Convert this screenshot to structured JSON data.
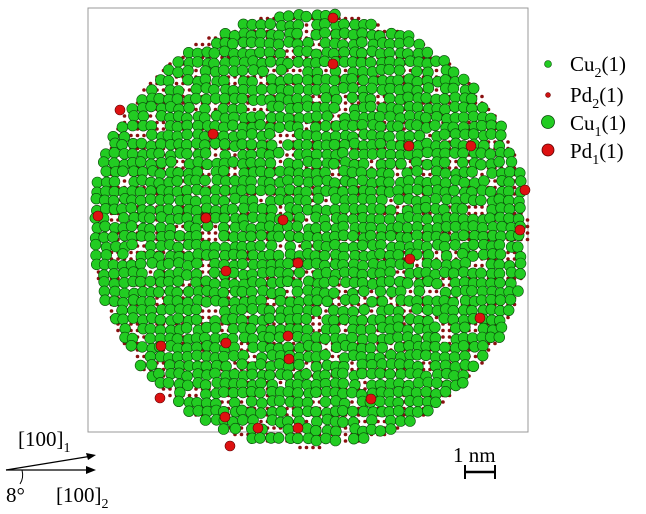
{
  "legend": {
    "items": [
      {
        "label": "Cu",
        "sub": "2",
        "suffix": "(1)",
        "color": "#22cc22",
        "marker": "small"
      },
      {
        "label": "Pd",
        "sub": "2",
        "suffix": "(1)",
        "color": "#cc1111",
        "marker": "small"
      },
      {
        "label": "Cu",
        "sub": "1",
        "suffix": "(1)",
        "color": "#22cc22",
        "marker": "large"
      },
      {
        "label": "Pd",
        "sub": "1",
        "suffix": "(1)",
        "color": "#dd1111",
        "marker": "large"
      }
    ]
  },
  "orientation": {
    "top_label": "[100]",
    "top_sub": "1",
    "bottom_label": "[100]",
    "bottom_sub": "2",
    "angle_label": "8°"
  },
  "scale_bar": {
    "label": "1 nm"
  },
  "colors": {
    "cu": "#22cc22",
    "pd": "#cc1111",
    "atom_outline": "#0a4a0a",
    "frame": "#999999"
  }
}
